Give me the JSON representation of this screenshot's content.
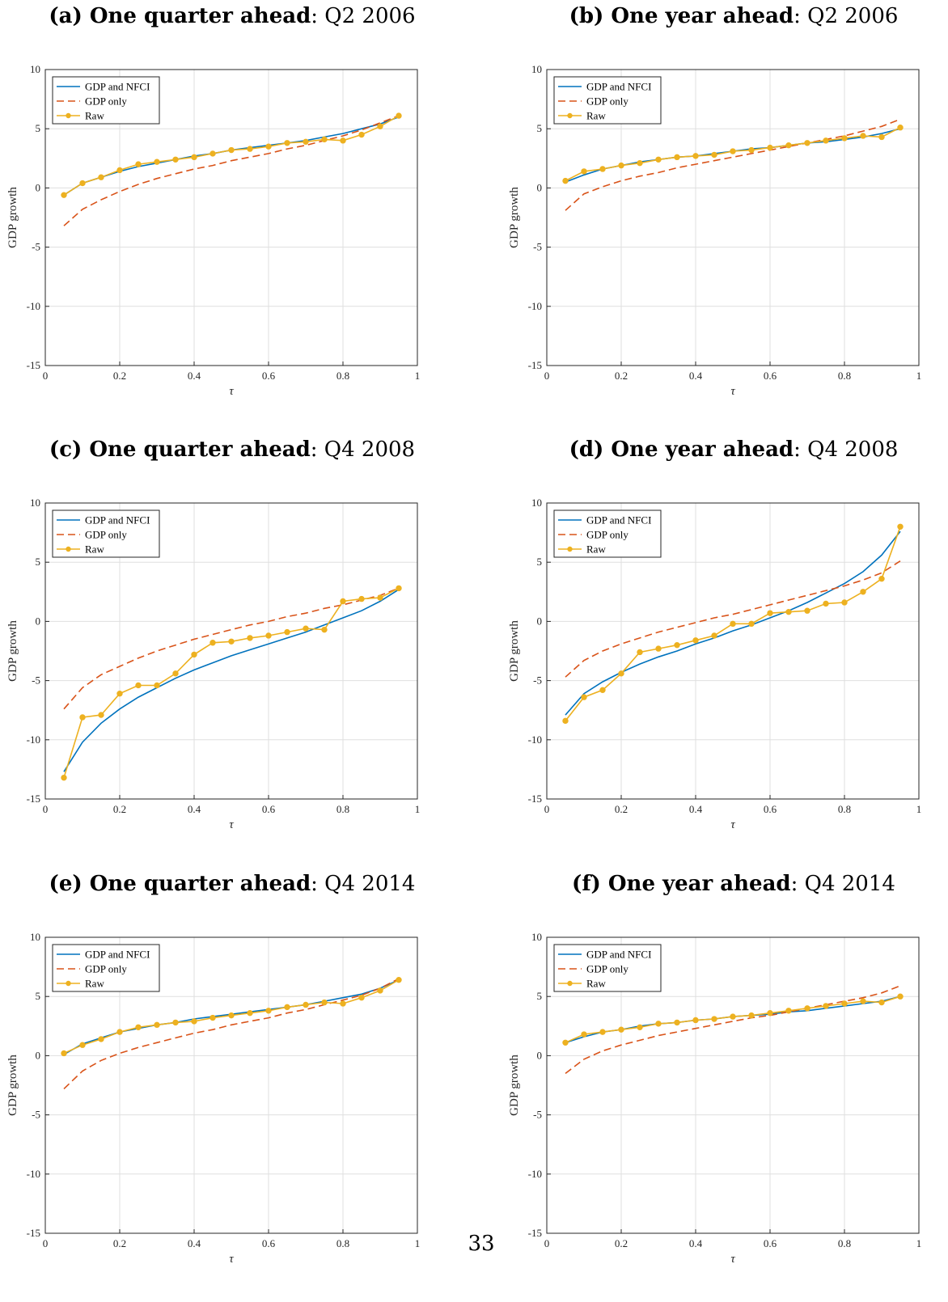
{
  "page_number": "33",
  "colors": {
    "gdp_nfci": "#0072BD",
    "gdp_only": "#D95319",
    "raw": "#EDB120"
  },
  "chart_data": [
    {
      "type": "line",
      "label": "(a)",
      "title_bold": "One quarter ahead",
      "title_rest": ": Q2 2006",
      "xlabel": "τ",
      "ylabel": "GDP growth",
      "xlim": [
        0,
        1
      ],
      "ylim": [
        -15,
        10
      ],
      "xticks": [
        "0",
        "0.2",
        "0.4",
        "0.6",
        "0.8",
        "1"
      ],
      "yticks": [
        "-15",
        "-10",
        "-5",
        "0",
        "5",
        "10"
      ],
      "grid": true,
      "legend_position": "top-left",
      "x": [
        0.05,
        0.1,
        0.15,
        0.2,
        0.25,
        0.3,
        0.35,
        0.4,
        0.45,
        0.5,
        0.55,
        0.6,
        0.65,
        0.7,
        0.75,
        0.8,
        0.85,
        0.9,
        0.95
      ],
      "series": [
        {
          "name": "GDP and NFCI",
          "style": "solid",
          "values": [
            -0.6,
            0.4,
            0.9,
            1.4,
            1.8,
            2.1,
            2.4,
            2.7,
            2.9,
            3.2,
            3.4,
            3.6,
            3.8,
            4.0,
            4.3,
            4.6,
            5.0,
            5.4,
            6.0
          ]
        },
        {
          "name": "GDP only",
          "style": "dashed",
          "values": [
            -3.2,
            -1.8,
            -1.0,
            -0.3,
            0.3,
            0.8,
            1.2,
            1.6,
            1.9,
            2.3,
            2.6,
            2.9,
            3.3,
            3.6,
            4.0,
            4.4,
            4.9,
            5.5,
            6.1
          ]
        },
        {
          "name": "Raw",
          "style": "marker",
          "values": [
            -0.6,
            0.4,
            0.9,
            1.5,
            2.0,
            2.2,
            2.4,
            2.6,
            2.9,
            3.2,
            3.3,
            3.5,
            3.8,
            3.9,
            4.1,
            4.0,
            4.5,
            5.2,
            6.1
          ]
        }
      ]
    },
    {
      "type": "line",
      "label": "(b)",
      "title_bold": "One year ahead",
      "title_rest": ": Q2 2006",
      "xlabel": "τ",
      "ylabel": "GDP growth",
      "xlim": [
        0,
        1
      ],
      "ylim": [
        -15,
        10
      ],
      "xticks": [
        "0",
        "0.2",
        "0.4",
        "0.6",
        "0.8",
        "1"
      ],
      "yticks": [
        "-15",
        "-10",
        "-5",
        "0",
        "5",
        "10"
      ],
      "grid": true,
      "legend_position": "top-left",
      "x": [
        0.05,
        0.1,
        0.15,
        0.2,
        0.25,
        0.3,
        0.35,
        0.4,
        0.45,
        0.5,
        0.55,
        0.6,
        0.65,
        0.7,
        0.75,
        0.8,
        0.85,
        0.9,
        0.95
      ],
      "series": [
        {
          "name": "GDP and NFCI",
          "style": "solid",
          "values": [
            0.5,
            1.1,
            1.6,
            1.9,
            2.2,
            2.4,
            2.6,
            2.7,
            2.9,
            3.1,
            3.3,
            3.4,
            3.6,
            3.8,
            3.9,
            4.1,
            4.3,
            4.6,
            5.0
          ]
        },
        {
          "name": "GDP only",
          "style": "dashed",
          "values": [
            -1.9,
            -0.5,
            0.1,
            0.6,
            1.0,
            1.3,
            1.7,
            2.0,
            2.3,
            2.6,
            2.9,
            3.2,
            3.5,
            3.8,
            4.1,
            4.4,
            4.8,
            5.2,
            5.8
          ]
        },
        {
          "name": "Raw",
          "style": "marker",
          "values": [
            0.6,
            1.4,
            1.6,
            1.9,
            2.1,
            2.4,
            2.6,
            2.7,
            2.8,
            3.1,
            3.2,
            3.4,
            3.6,
            3.8,
            4.0,
            4.2,
            4.4,
            4.3,
            5.1
          ]
        }
      ]
    },
    {
      "type": "line",
      "label": "(c)",
      "title_bold": "One quarter ahead",
      "title_rest": ": Q4 2008",
      "xlabel": "τ",
      "ylabel": "GDP growth",
      "xlim": [
        0,
        1
      ],
      "ylim": [
        -15,
        10
      ],
      "xticks": [
        "0",
        "0.2",
        "0.4",
        "0.6",
        "0.8",
        "1"
      ],
      "yticks": [
        "-15",
        "-10",
        "-5",
        "0",
        "5",
        "10"
      ],
      "grid": true,
      "legend_position": "top-left",
      "x": [
        0.05,
        0.1,
        0.15,
        0.2,
        0.25,
        0.3,
        0.35,
        0.4,
        0.45,
        0.5,
        0.55,
        0.6,
        0.65,
        0.7,
        0.75,
        0.8,
        0.85,
        0.9,
        0.95
      ],
      "series": [
        {
          "name": "GDP and NFCI",
          "style": "solid",
          "values": [
            -12.7,
            -10.2,
            -8.6,
            -7.4,
            -6.4,
            -5.6,
            -4.8,
            -4.1,
            -3.5,
            -2.9,
            -2.4,
            -1.9,
            -1.4,
            -0.9,
            -0.3,
            0.3,
            0.9,
            1.7,
            2.7
          ]
        },
        {
          "name": "GDP only",
          "style": "dashed",
          "values": [
            -7.4,
            -5.6,
            -4.5,
            -3.8,
            -3.1,
            -2.5,
            -2.0,
            -1.5,
            -1.1,
            -0.7,
            -0.3,
            0.0,
            0.4,
            0.7,
            1.1,
            1.4,
            1.8,
            2.2,
            2.8
          ]
        },
        {
          "name": "Raw",
          "style": "marker",
          "values": [
            -13.2,
            -8.1,
            -7.9,
            -6.1,
            -5.4,
            -5.4,
            -4.4,
            -2.8,
            -1.8,
            -1.7,
            -1.4,
            -1.2,
            -0.9,
            -0.6,
            -0.7,
            1.7,
            1.9,
            2.0,
            2.8
          ]
        }
      ]
    },
    {
      "type": "line",
      "label": "(d)",
      "title_bold": "One year ahead",
      "title_rest": ": Q4 2008",
      "xlabel": "τ",
      "ylabel": "GDP growth",
      "xlim": [
        0,
        1
      ],
      "ylim": [
        -15,
        10
      ],
      "xticks": [
        "0",
        "0.2",
        "0.4",
        "0.6",
        "0.8",
        "1"
      ],
      "yticks": [
        "-15",
        "-10",
        "-5",
        "0",
        "5",
        "10"
      ],
      "grid": true,
      "legend_position": "top-left",
      "x": [
        0.05,
        0.1,
        0.15,
        0.2,
        0.25,
        0.3,
        0.35,
        0.4,
        0.45,
        0.5,
        0.55,
        0.6,
        0.65,
        0.7,
        0.75,
        0.8,
        0.85,
        0.9,
        0.95
      ],
      "series": [
        {
          "name": "GDP and NFCI",
          "style": "solid",
          "values": [
            -7.9,
            -6.1,
            -5.1,
            -4.3,
            -3.6,
            -3.0,
            -2.5,
            -1.9,
            -1.4,
            -0.8,
            -0.3,
            0.3,
            0.9,
            1.6,
            2.4,
            3.2,
            4.2,
            5.6,
            7.6
          ]
        },
        {
          "name": "GDP only",
          "style": "dashed",
          "values": [
            -4.7,
            -3.3,
            -2.5,
            -1.9,
            -1.4,
            -0.9,
            -0.5,
            -0.1,
            0.3,
            0.6,
            1.0,
            1.4,
            1.8,
            2.2,
            2.6,
            3.0,
            3.5,
            4.1,
            5.1
          ]
        },
        {
          "name": "Raw",
          "style": "marker",
          "values": [
            -8.4,
            -6.4,
            -5.8,
            -4.4,
            -2.6,
            -2.3,
            -2.0,
            -1.6,
            -1.2,
            -0.2,
            -0.2,
            0.7,
            0.8,
            0.9,
            1.5,
            1.6,
            2.5,
            3.6,
            8.0
          ]
        }
      ]
    },
    {
      "type": "line",
      "label": "(e)",
      "title_bold": "One quarter ahead",
      "title_rest": ": Q4 2014",
      "xlabel": "τ",
      "ylabel": "GDP growth",
      "xlim": [
        0,
        1
      ],
      "ylim": [
        -15,
        10
      ],
      "xticks": [
        "0",
        "0.2",
        "0.4",
        "0.6",
        "0.8",
        "1"
      ],
      "yticks": [
        "-15",
        "-10",
        "-5",
        "0",
        "5",
        "10"
      ],
      "grid": true,
      "legend_position": "top-left",
      "x": [
        0.05,
        0.1,
        0.15,
        0.2,
        0.25,
        0.3,
        0.35,
        0.4,
        0.45,
        0.5,
        0.55,
        0.6,
        0.65,
        0.7,
        0.75,
        0.8,
        0.85,
        0.9,
        0.95
      ],
      "series": [
        {
          "name": "GDP and NFCI",
          "style": "solid",
          "values": [
            0.1,
            1.0,
            1.5,
            2.0,
            2.3,
            2.6,
            2.8,
            3.1,
            3.3,
            3.5,
            3.7,
            3.9,
            4.1,
            4.3,
            4.6,
            4.9,
            5.2,
            5.7,
            6.4
          ]
        },
        {
          "name": "GDP only",
          "style": "dashed",
          "values": [
            -2.8,
            -1.3,
            -0.4,
            0.2,
            0.7,
            1.1,
            1.5,
            1.9,
            2.2,
            2.6,
            2.9,
            3.2,
            3.6,
            3.9,
            4.3,
            4.7,
            5.1,
            5.7,
            6.5
          ]
        },
        {
          "name": "Raw",
          "style": "marker",
          "values": [
            0.2,
            0.9,
            1.4,
            2.0,
            2.4,
            2.6,
            2.8,
            2.9,
            3.2,
            3.4,
            3.6,
            3.8,
            4.1,
            4.3,
            4.5,
            4.4,
            4.9,
            5.5,
            6.4
          ]
        }
      ]
    },
    {
      "type": "line",
      "label": "(f)",
      "title_bold": "One year ahead",
      "title_rest": ": Q4 2014",
      "xlabel": "τ",
      "ylabel": "GDP growth",
      "xlim": [
        0,
        1
      ],
      "ylim": [
        -15,
        10
      ],
      "xticks": [
        "0",
        "0.2",
        "0.4",
        "0.6",
        "0.8",
        "1"
      ],
      "yticks": [
        "-15",
        "-10",
        "-5",
        "0",
        "5",
        "10"
      ],
      "grid": true,
      "legend_position": "top-left",
      "x": [
        0.05,
        0.1,
        0.15,
        0.2,
        0.25,
        0.3,
        0.35,
        0.4,
        0.45,
        0.5,
        0.55,
        0.6,
        0.65,
        0.7,
        0.75,
        0.8,
        0.85,
        0.9,
        0.95
      ],
      "series": [
        {
          "name": "GDP and NFCI",
          "style": "solid",
          "values": [
            1.1,
            1.6,
            2.0,
            2.2,
            2.5,
            2.7,
            2.8,
            3.0,
            3.1,
            3.3,
            3.4,
            3.5,
            3.7,
            3.8,
            4.0,
            4.2,
            4.4,
            4.6,
            5.0
          ]
        },
        {
          "name": "GDP only",
          "style": "dashed",
          "values": [
            -1.5,
            -0.3,
            0.4,
            0.9,
            1.3,
            1.7,
            2.0,
            2.3,
            2.6,
            2.9,
            3.2,
            3.4,
            3.7,
            4.0,
            4.3,
            4.6,
            4.9,
            5.3,
            5.9
          ]
        },
        {
          "name": "Raw",
          "style": "marker",
          "values": [
            1.1,
            1.8,
            2.0,
            2.2,
            2.4,
            2.7,
            2.8,
            3.0,
            3.1,
            3.3,
            3.4,
            3.6,
            3.8,
            4.0,
            4.2,
            4.4,
            4.6,
            4.5,
            5.0
          ]
        }
      ]
    }
  ]
}
